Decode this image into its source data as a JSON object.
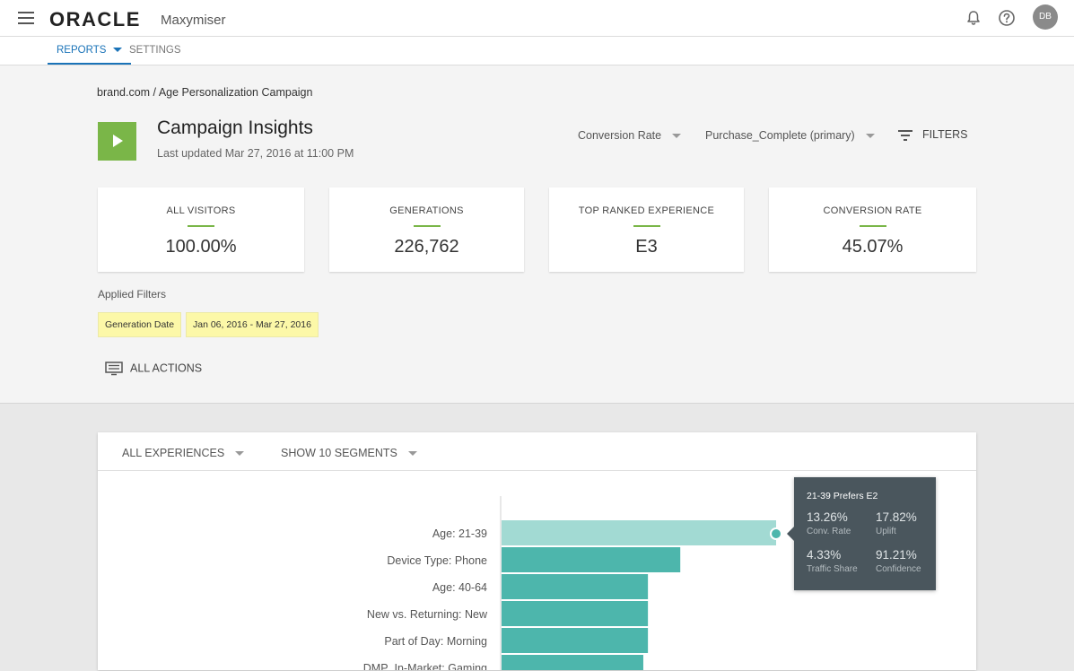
{
  "header": {
    "logo_text": "ORACLE",
    "product_name": "Maxymiser",
    "user_initials": "DB"
  },
  "nav": {
    "reports_label": "REPORTS",
    "settings_label": "SETTINGS"
  },
  "breadcrumb": {
    "site": "brand.com",
    "separator": "/",
    "campaign": "Age Personalization Campaign"
  },
  "campaign": {
    "title": "Campaign Insights",
    "last_updated": "Last updated Mar 27, 2016 at 11:00 PM"
  },
  "controls": {
    "metric": "Conversion Rate",
    "action": "Purchase_Complete (primary)",
    "filters_label": "FILTERS"
  },
  "stats": [
    {
      "label": "ALL VISITORS",
      "value": "100.00%"
    },
    {
      "label": "GENERATIONS",
      "value": "226,762"
    },
    {
      "label": "TOP RANKED EXPERIENCE",
      "value": "E3"
    },
    {
      "label": "CONVERSION RATE",
      "value": "45.07%"
    }
  ],
  "applied_filters": {
    "label": "Applied Filters",
    "chips": [
      "Generation Date",
      "Jan 06, 2016 - Mar 27, 2016"
    ]
  },
  "all_actions_label": "ALL ACTIONS",
  "panel": {
    "experiences_label": "ALL EXPERIENCES",
    "segments_label": "SHOW 10 SEGMENTS"
  },
  "chart_data": {
    "type": "bar",
    "orientation": "horizontal",
    "title": "",
    "categories": [
      "Age: 21-39",
      "Device Type: Phone",
      "Age: 40-64",
      "New vs. Returning: New",
      "Part of Day: Morning",
      "DMP_In-Market: Gaming"
    ],
    "values": [
      17.82,
      11.6,
      9.5,
      9.5,
      9.5,
      9.2
    ],
    "highlighted_index": 0,
    "colors": {
      "bar": "#4db6ac",
      "highlight": "#a2dad3",
      "marker": "#4db6ac"
    },
    "xlim": [
      0,
      18
    ]
  },
  "tooltip": {
    "title": "21-39 Prefers E2",
    "metrics": [
      {
        "value": "13.26%",
        "label": "Conv. Rate"
      },
      {
        "value": "17.82%",
        "label": "Uplift"
      },
      {
        "value": "4.33%",
        "label": "Traffic Share"
      },
      {
        "value": "91.21%",
        "label": "Confidence"
      }
    ]
  }
}
